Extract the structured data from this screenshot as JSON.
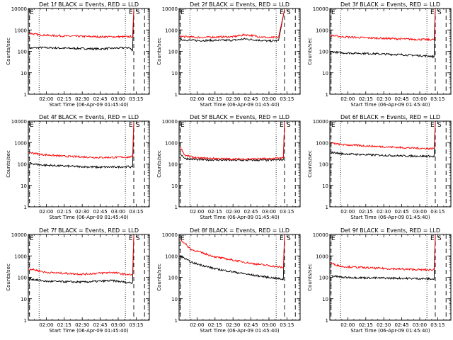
{
  "figure": {
    "x_axis_title": "Start Time (06-Apr-09 01:45:40)",
    "y_axis_title": "Counts/sec",
    "colors": {
      "events": "#000000",
      "lld": "#ff0000",
      "axes": "#000000",
      "background": "#ffffff"
    }
  },
  "chart_data": [
    {
      "type": "line",
      "title": "Det 1f BLACK = Events, RED = LLD",
      "xlabel": "Start Time (06-Apr-09 01:45:40)",
      "ylabel": "Counts/sec",
      "ylog": true,
      "ylim": [
        1,
        10000
      ],
      "yticklabels": [
        "1",
        "10",
        "100",
        "1000",
        "10000"
      ],
      "xlim": [
        "01:45",
        "03:26"
      ],
      "xticklabels": [
        "02:00",
        "02:15",
        "02:30",
        "02:45",
        "03:00",
        "03:15"
      ],
      "markers": [
        "E",
        "S"
      ],
      "vlines_dashed": [
        "01:46",
        "03:13",
        "03:22"
      ],
      "vlines_dotted": [
        "01:54",
        "03:06"
      ],
      "series": [
        {
          "x": [
            "01:46",
            "01:55",
            "02:15",
            "02:45",
            "03:09",
            "03:12",
            "03:13"
          ],
          "values": [
            700,
            580,
            520,
            480,
            480,
            500,
            9000
          ],
          "color": "#ff0000"
        },
        {
          "x": [
            "01:46",
            "01:55",
            "02:15",
            "02:45",
            "03:09",
            "03:12",
            "03:13"
          ],
          "values": [
            140,
            150,
            140,
            130,
            150,
            110,
            9000
          ],
          "color": "#000000"
        }
      ]
    },
    {
      "type": "line",
      "title": "Det 2f BLACK = Events, RED = LLD",
      "xlabel": "Start Time (06-Apr-09 01:45:40)",
      "ylabel": "Counts/sec",
      "ylog": true,
      "ylim": [
        1,
        10000
      ],
      "yticklabels": [
        "1",
        "10",
        "100",
        "1000",
        "10000"
      ],
      "xlim": [
        "01:45",
        "03:26"
      ],
      "xticklabels": [
        "02:00",
        "02:15",
        "02:30",
        "02:45",
        "03:00",
        "03:15"
      ],
      "markers": [
        "E",
        "S"
      ],
      "vlines_dashed": [
        "01:46",
        "03:13",
        "03:22"
      ],
      "vlines_dotted": [
        "01:54",
        "03:06"
      ],
      "series": [
        {
          "x": [
            "01:46",
            "02:00",
            "02:30",
            "02:40",
            "03:00",
            "03:08",
            "03:13"
          ],
          "values": [
            500,
            450,
            480,
            600,
            430,
            460,
            9000
          ],
          "color": "#ff0000"
        },
        {
          "x": [
            "01:46",
            "02:00",
            "02:30",
            "02:40",
            "03:00",
            "03:08",
            "03:13"
          ],
          "values": [
            350,
            320,
            330,
            380,
            300,
            320,
            9000
          ],
          "color": "#000000"
        }
      ]
    },
    {
      "type": "line",
      "title": "Det 3f BLACK = Events, RED = LLD",
      "xlabel": "Start Time (06-Apr-09 01:45:40)",
      "ylabel": "Counts/sec",
      "ylog": true,
      "ylim": [
        1,
        10000
      ],
      "yticklabels": [
        "1",
        "10",
        "100",
        "1000",
        "10000"
      ],
      "xlim": [
        "01:45",
        "03:26"
      ],
      "xticklabels": [
        "02:00",
        "02:15",
        "02:30",
        "02:45",
        "03:00",
        "03:15"
      ],
      "markers": [
        "E",
        "S"
      ],
      "vlines_dashed": [
        "01:46",
        "03:13",
        "03:22"
      ],
      "vlines_dotted": [
        "01:54",
        "03:06"
      ],
      "series": [
        {
          "x": [
            "01:46",
            "01:55",
            "02:15",
            "02:45",
            "03:09",
            "03:12",
            "03:13"
          ],
          "values": [
            550,
            480,
            430,
            380,
            350,
            360,
            9000
          ],
          "color": "#ff0000"
        },
        {
          "x": [
            "01:46",
            "01:55",
            "02:15",
            "02:45",
            "03:09",
            "03:12",
            "03:13"
          ],
          "values": [
            95,
            85,
            80,
            70,
            60,
            55,
            9000
          ],
          "color": "#000000"
        }
      ]
    },
    {
      "type": "line",
      "title": "Det 4f BLACK = Events, RED = LLD",
      "xlabel": "Start Time (06-Apr-09 01:45:40)",
      "ylabel": "Counts/sec",
      "ylog": true,
      "ylim": [
        1,
        10000
      ],
      "yticklabels": [
        "1",
        "10",
        "100",
        "1000",
        "10000"
      ],
      "xlim": [
        "01:45",
        "03:26"
      ],
      "xticklabels": [
        "02:00",
        "02:15",
        "02:30",
        "02:45",
        "03:00",
        "03:15"
      ],
      "markers": [
        "E",
        "S"
      ],
      "vlines_dashed": [
        "01:46",
        "03:13",
        "03:22"
      ],
      "vlines_dotted": [
        "01:54",
        "03:06"
      ],
      "series": [
        {
          "x": [
            "01:46",
            "01:55",
            "02:15",
            "02:45",
            "03:09",
            "03:12",
            "03:13"
          ],
          "values": [
            350,
            280,
            230,
            200,
            210,
            220,
            9000
          ],
          "color": "#ff0000"
        },
        {
          "x": [
            "01:46",
            "01:55",
            "02:15",
            "02:45",
            "03:09",
            "03:12",
            "03:13"
          ],
          "values": [
            110,
            90,
            80,
            70,
            75,
            70,
            9000
          ],
          "color": "#000000"
        }
      ]
    },
    {
      "type": "line",
      "title": "Det 5f BLACK = Events, RED = LLD",
      "xlabel": "Start Time (06-Apr-09 01:45:40)",
      "ylabel": "Counts/sec",
      "ylog": true,
      "ylim": [
        1,
        10000
      ],
      "yticklabels": [
        "1",
        "10",
        "100",
        "1000",
        "10000"
      ],
      "xlim": [
        "01:45",
        "03:26"
      ],
      "xticklabels": [
        "02:00",
        "02:15",
        "02:30",
        "02:45",
        "03:00",
        "03:15"
      ],
      "markers": [
        "E",
        "S"
      ],
      "vlines_dashed": [
        "01:46",
        "03:13",
        "03:22"
      ],
      "vlines_dotted": [
        "01:54",
        "03:06"
      ],
      "series": [
        {
          "x": [
            "01:46",
            "01:50",
            "02:00",
            "02:30",
            "03:00",
            "03:12",
            "03:13"
          ],
          "values": [
            600,
            250,
            190,
            170,
            175,
            190,
            9000
          ],
          "color": "#ff0000"
        },
        {
          "x": [
            "01:46",
            "01:50",
            "02:00",
            "02:30",
            "03:00",
            "03:12",
            "03:13"
          ],
          "values": [
            300,
            180,
            160,
            150,
            150,
            160,
            9000
          ],
          "color": "#000000"
        }
      ]
    },
    {
      "type": "line",
      "title": "Det 6f BLACK = Events, RED = LLD",
      "xlabel": "Start Time (06-Apr-09 01:45:40)",
      "ylabel": "Counts/sec",
      "ylog": true,
      "ylim": [
        1,
        10000
      ],
      "yticklabels": [
        "1",
        "10",
        "100",
        "1000",
        "10000"
      ],
      "xlim": [
        "01:45",
        "03:26"
      ],
      "xticklabels": [
        "02:00",
        "02:15",
        "02:30",
        "02:45",
        "03:00",
        "03:15"
      ],
      "markers": [
        "E",
        "S"
      ],
      "vlines_dashed": [
        "01:46",
        "03:13",
        "03:22"
      ],
      "vlines_dotted": [
        "01:54",
        "03:06"
      ],
      "series": [
        {
          "x": [
            "01:46",
            "01:55",
            "02:15",
            "02:45",
            "03:09",
            "03:12",
            "03:13"
          ],
          "values": [
            950,
            800,
            700,
            580,
            520,
            530,
            9000
          ],
          "color": "#ff0000"
        },
        {
          "x": [
            "01:46",
            "01:55",
            "02:15",
            "02:45",
            "03:09",
            "03:12",
            "03:13"
          ],
          "values": [
            350,
            300,
            270,
            240,
            230,
            220,
            9000
          ],
          "color": "#000000"
        }
      ]
    },
    {
      "type": "line",
      "title": "Det 7f BLACK = Events, RED = LLD",
      "xlabel": "Start Time (06-Apr-09 01:45:40)",
      "ylabel": "Counts/sec",
      "ylog": true,
      "ylim": [
        1,
        10000
      ],
      "yticklabels": [
        "1",
        "10",
        "100",
        "1000",
        "10000"
      ],
      "xlim": [
        "01:45",
        "03:26"
      ],
      "xticklabels": [
        "02:00",
        "02:15",
        "02:30",
        "02:45",
        "03:00",
        "03:15"
      ],
      "markers": [
        "E",
        "S"
      ],
      "vlines_dashed": [
        "01:46",
        "03:13",
        "03:22"
      ],
      "vlines_dotted": [
        "01:54",
        "03:06"
      ],
      "series": [
        {
          "x": [
            "01:46",
            "02:00",
            "02:30",
            "02:55",
            "03:05",
            "03:12",
            "03:13"
          ],
          "values": [
            250,
            170,
            140,
            170,
            140,
            130,
            9000
          ],
          "color": "#ff0000"
        },
        {
          "x": [
            "01:46",
            "02:00",
            "02:30",
            "02:55",
            "03:05",
            "03:12",
            "03:13"
          ],
          "values": [
            85,
            65,
            60,
            70,
            60,
            55,
            9000
          ],
          "color": "#000000"
        }
      ]
    },
    {
      "type": "line",
      "title": "Det 8f BLACK = Events, RED = LLD",
      "xlabel": "Start Time (06-Apr-09 01:45:40)",
      "ylabel": "Counts/sec",
      "ylog": true,
      "ylim": [
        1,
        10000
      ],
      "yticklabels": [
        "1",
        "10",
        "100",
        "1000",
        "10000"
      ],
      "xlim": [
        "01:45",
        "03:26"
      ],
      "xticklabels": [
        "02:00",
        "02:15",
        "02:30",
        "02:45",
        "03:00",
        "03:15"
      ],
      "markers": [
        "E",
        "S"
      ],
      "vlines_dashed": [
        "01:46",
        "03:13",
        "03:22"
      ],
      "vlines_dotted": [
        "01:54",
        "03:06"
      ],
      "series": [
        {
          "x": [
            "01:46",
            "01:55",
            "02:15",
            "02:45",
            "03:09",
            "03:12",
            "03:13"
          ],
          "values": [
            6000,
            2000,
            900,
            450,
            300,
            280,
            9000
          ],
          "color": "#ff0000"
        },
        {
          "x": [
            "01:46",
            "01:55",
            "02:15",
            "02:45",
            "03:09",
            "03:12",
            "03:13"
          ],
          "values": [
            1000,
            500,
            250,
            130,
            85,
            80,
            9000
          ],
          "color": "#000000"
        }
      ]
    },
    {
      "type": "line",
      "title": "Det 9f BLACK = Events, RED = LLD",
      "xlabel": "Start Time (06-Apr-09 01:45:40)",
      "ylabel": "Counts/sec",
      "ylog": true,
      "ylim": [
        1,
        10000
      ],
      "yticklabels": [
        "1",
        "10",
        "100",
        "1000",
        "10000"
      ],
      "xlim": [
        "01:45",
        "03:26"
      ],
      "xticklabels": [
        "02:00",
        "02:15",
        "02:30",
        "02:45",
        "03:00",
        "03:15"
      ],
      "markers": [
        "E",
        "S"
      ],
      "vlines_dashed": [
        "01:46",
        "03:13",
        "03:22"
      ],
      "vlines_dotted": [
        "01:54",
        "03:06"
      ],
      "series": [
        {
          "x": [
            "01:46",
            "01:55",
            "02:15",
            "02:45",
            "03:09",
            "03:12",
            "03:13"
          ],
          "values": [
            450,
            320,
            280,
            240,
            220,
            230,
            9000
          ],
          "color": "#ff0000"
        },
        {
          "x": [
            "01:46",
            "01:55",
            "02:15",
            "02:45",
            "03:09",
            "03:12",
            "03:13"
          ],
          "values": [
            120,
            100,
            95,
            90,
            85,
            80,
            9000
          ],
          "color": "#000000"
        }
      ]
    }
  ]
}
